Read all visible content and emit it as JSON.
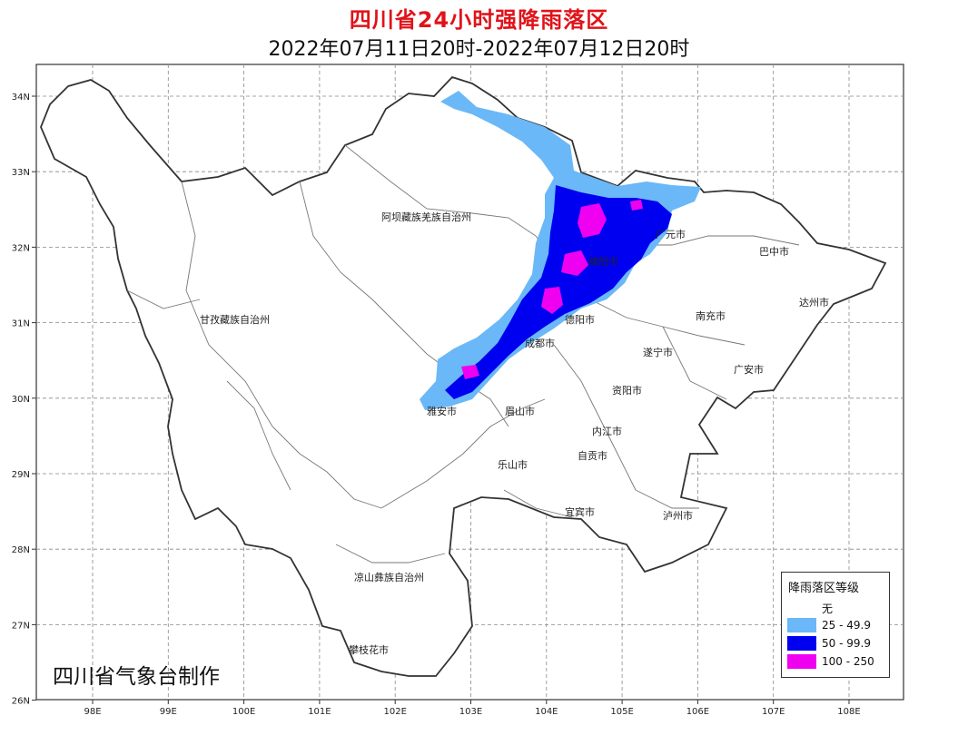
{
  "title": "四川省24小时强降雨落区",
  "subtitle": "2022年07月11日20时-2022年07月12日20时",
  "credit": "四川省气象台制作",
  "axes": {
    "lat_labels": [
      "34N",
      "33N",
      "32N",
      "31N",
      "30N",
      "29N",
      "28N",
      "27N",
      "26N"
    ],
    "lon_labels": [
      "98E",
      "99E",
      "100E",
      "101E",
      "102E",
      "103E",
      "104E",
      "105E",
      "106E",
      "107E",
      "108E"
    ]
  },
  "regions": [
    {
      "label": "阿坝藏族羌族自治州"
    },
    {
      "label": "甘孜藏族自治州"
    },
    {
      "label": "凉山彝族自治州"
    },
    {
      "label": "广元市"
    },
    {
      "label": "巴中市"
    },
    {
      "label": "绵阳市"
    },
    {
      "label": "达州市"
    },
    {
      "label": "南充市"
    },
    {
      "label": "德阳市"
    },
    {
      "label": "遂宁市"
    },
    {
      "label": "成都市"
    },
    {
      "label": "广安市"
    },
    {
      "label": "雅安市"
    },
    {
      "label": "眉山市"
    },
    {
      "label": "资阳市"
    },
    {
      "label": "内江市"
    },
    {
      "label": "自贡市"
    },
    {
      "label": "乐山市"
    },
    {
      "label": "宜宾市"
    },
    {
      "label": "泸州市"
    },
    {
      "label": "攀枝花市"
    }
  ],
  "legend": {
    "title": "降雨落区等级",
    "items": [
      {
        "label": "无",
        "color": "#ffffff"
      },
      {
        "label": "25 - 49.9",
        "color": "#6ab8f7"
      },
      {
        "label": "50 - 99.9",
        "color": "#0000f0"
      },
      {
        "label": "100 - 250",
        "color": "#f000f0"
      }
    ]
  },
  "colors": {
    "border": "#333333",
    "grid": "#888888",
    "county": "#888888"
  }
}
